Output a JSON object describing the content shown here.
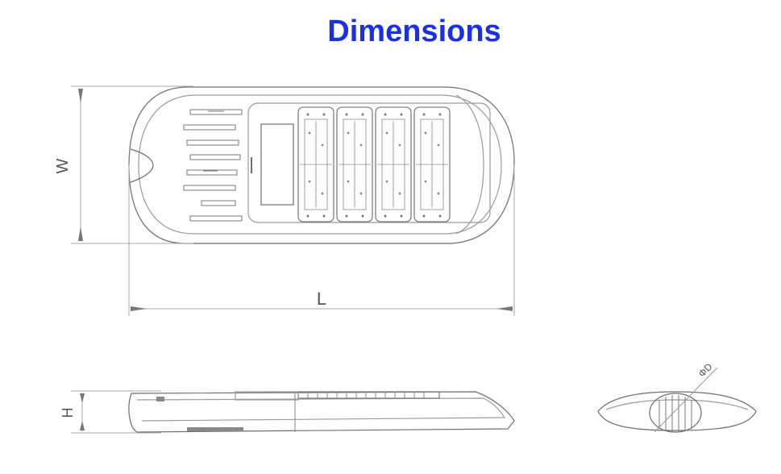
{
  "title": "Dimensions",
  "labels": {
    "width": "W",
    "length": "L",
    "height": "H",
    "diameter": "ΦD"
  },
  "colors": {
    "title": "#1a2fe8",
    "line": "#6e6e6e",
    "light_line": "#a8a8a8"
  }
}
